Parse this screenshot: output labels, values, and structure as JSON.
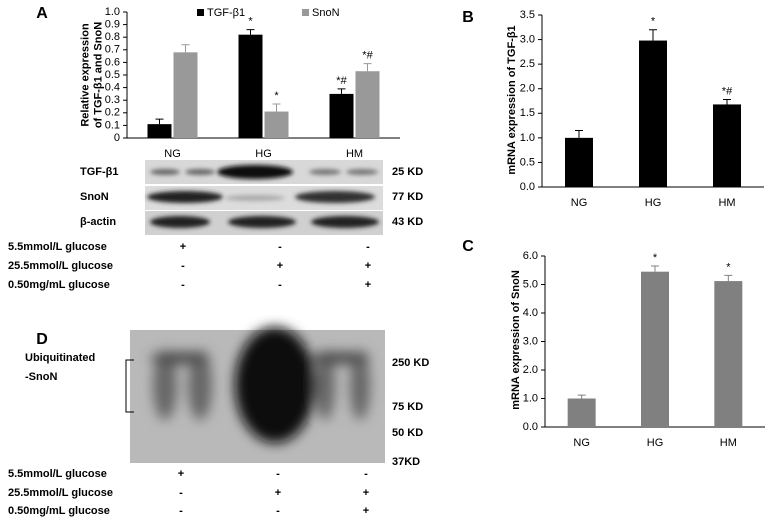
{
  "chart_data": [
    {
      "type": "bar",
      "ylabel": [
        "Relative expression",
        "of TGF-β1 and SnoN"
      ],
      "categories": [
        "NG",
        "HG",
        "HM"
      ],
      "series": [
        {
          "name": "TGF-β1",
          "color": "#000000",
          "values": [
            0.11,
            0.82,
            0.35
          ],
          "errors": [
            0.04,
            0.04,
            0.04
          ],
          "annotations": [
            null,
            "*",
            "*#"
          ]
        },
        {
          "name": "SnoN",
          "color": "#999999",
          "values": [
            0.68,
            0.21,
            0.53
          ],
          "errors": [
            0.06,
            0.06,
            0.06
          ],
          "annotations": [
            null,
            "*",
            "*#"
          ]
        }
      ],
      "ylim": [
        0,
        1
      ],
      "yticks": [
        0,
        0.1,
        0.2,
        0.3,
        0.4,
        0.5,
        0.6,
        0.7,
        0.8,
        0.9,
        {
          "value": 1,
          "label": "1.0"
        }
      ],
      "legend": "top"
    },
    {
      "type": "bar",
      "ylabel": [
        "mRNA expression of TGF-β1"
      ],
      "categories": [
        "NG",
        "HG",
        "HM"
      ],
      "color": "#000000",
      "values": [
        1.0,
        2.98,
        1.68
      ],
      "errors": [
        0.15,
        0.22,
        0.1
      ],
      "annotations": [
        null,
        "*",
        "*#"
      ],
      "ylim": [
        0,
        3.5
      ],
      "yticks": [
        {
          "value": 0,
          "label": "0.0"
        },
        0.5,
        {
          "value": 1,
          "label": "1.0"
        },
        1.5,
        {
          "value": 2,
          "label": "2.0"
        },
        2.5,
        {
          "value": 3,
          "label": "3.0"
        },
        3.5
      ]
    },
    {
      "type": "bar",
      "ylabel": [
        "mRNA expression of SnoN"
      ],
      "categories": [
        "NG",
        "HG",
        "HM"
      ],
      "color": "#808080",
      "values": [
        1.0,
        5.45,
        5.12
      ],
      "errors": [
        0.12,
        0.2,
        0.2
      ],
      "annotations": [
        null,
        "*",
        "*"
      ],
      "ylim": [
        0,
        6
      ],
      "yticks": [
        {
          "value": 0,
          "label": "0.0"
        },
        {
          "value": 1,
          "label": "1.0"
        },
        {
          "value": 2,
          "label": "2.0"
        },
        {
          "value": 3,
          "label": "3.0"
        },
        {
          "value": 4,
          "label": "4.0"
        },
        {
          "value": 5,
          "label": "5.0"
        },
        {
          "value": 6,
          "label": "6.0"
        }
      ]
    }
  ],
  "panel_labels": [
    "A",
    "B",
    "C",
    "D"
  ],
  "blot_a": {
    "bands": [
      {
        "label": "TGF-β1",
        "size": "25 KD"
      },
      {
        "label": "SnoN",
        "size": "77 KD"
      },
      {
        "label": "β-actin",
        "size": "43 KD"
      }
    ],
    "conditions": [
      {
        "label": "5.5mmol/L glucose",
        "marks": [
          "+",
          "-",
          "-"
        ]
      },
      {
        "label": "25.5mmol/L glucose",
        "marks": [
          "-",
          "+",
          "+"
        ]
      },
      {
        "label": "0.50mg/mL glucose",
        "marks": [
          "-",
          "-",
          "+"
        ]
      }
    ]
  },
  "blot_d": {
    "label": [
      "Ubiquitinated",
      "-SnoN"
    ],
    "markers": [
      "250 KD",
      "75 KD",
      "50 KD",
      "37KD"
    ],
    "conditions": [
      {
        "label": "5.5mmol/L glucose",
        "marks": [
          "+",
          "-",
          "-"
        ]
      },
      {
        "label": "25.5mmol/L glucose",
        "marks": [
          "-",
          "+",
          "+"
        ]
      },
      {
        "label": "0.50mg/mL glucose",
        "marks": [
          "-",
          "-",
          "+"
        ]
      }
    ]
  }
}
